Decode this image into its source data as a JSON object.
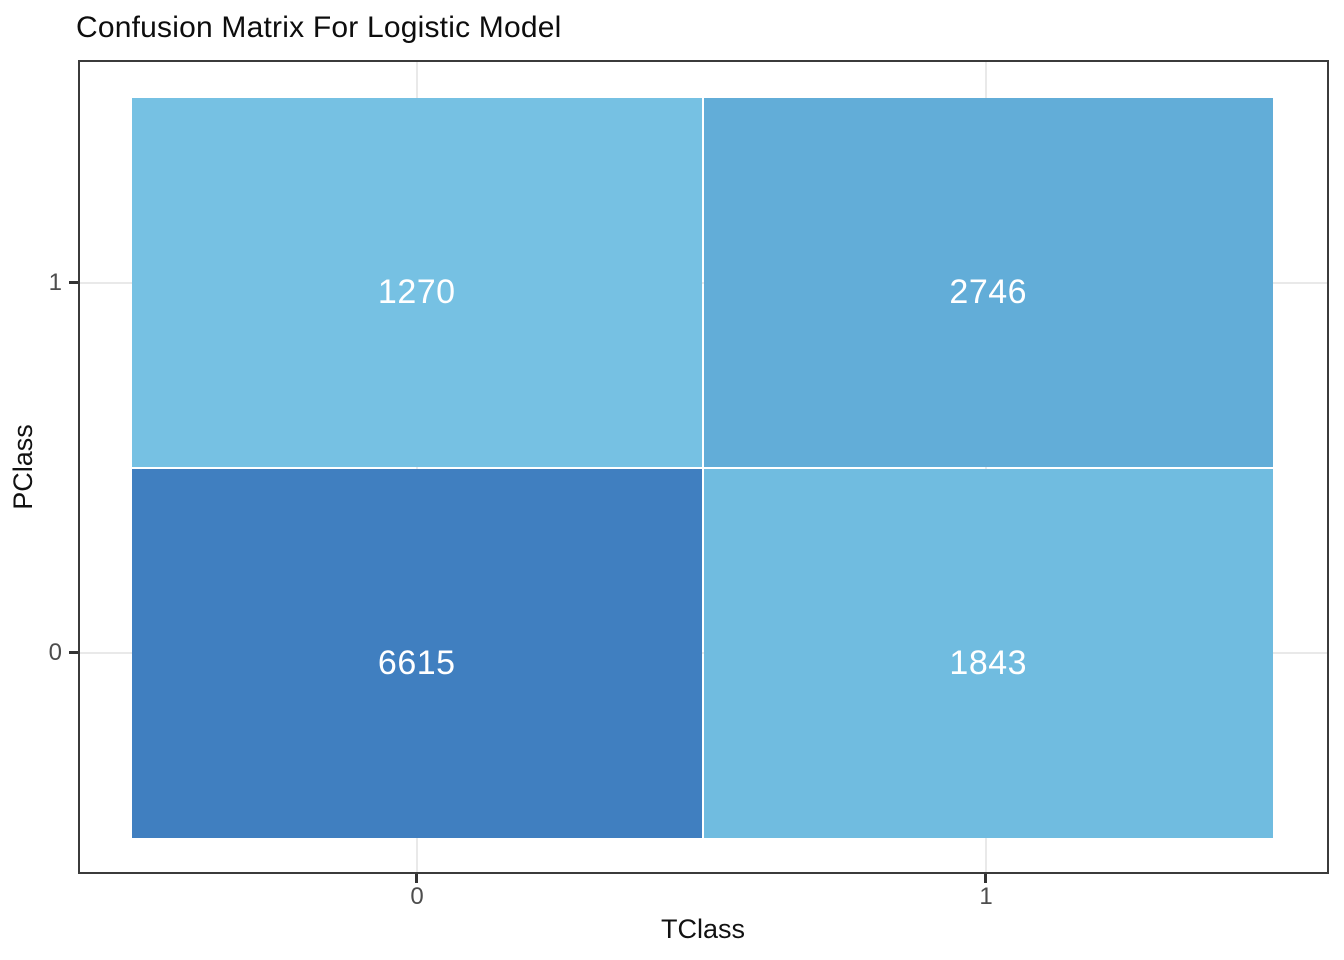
{
  "chart_data": {
    "type": "heatmap",
    "title": "Confusion Matrix For Logistic Model",
    "xlabel": "TClass",
    "ylabel": "PClass",
    "x_tick_labels": [
      "0",
      "1"
    ],
    "y_tick_labels": [
      "1",
      "0"
    ],
    "cells": [
      {
        "tclass": "0",
        "pclass": "1",
        "count": "1270",
        "fill": "#76C1E3"
      },
      {
        "tclass": "1",
        "pclass": "1",
        "count": "2746",
        "fill": "#62ADD8"
      },
      {
        "tclass": "0",
        "pclass": "0",
        "count": "6615",
        "fill": "#407FC0"
      },
      {
        "tclass": "1",
        "pclass": "0",
        "count": "1843",
        "fill": "#70BCE0"
      }
    ],
    "value_label_color": "#FFFFFF",
    "legend": "none",
    "grid": true,
    "colors": {
      "panel_border": "#3B3B3B",
      "gridline": "#E9E9E9",
      "tick_mark": "#333333",
      "tick_label": "#4D4D4D",
      "cell_separator": "#FFFFFF",
      "background": "#FFFFFF"
    }
  }
}
